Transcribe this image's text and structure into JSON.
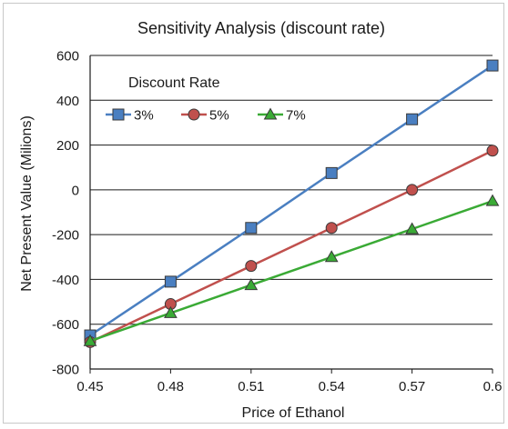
{
  "chart_data": {
    "type": "line",
    "title": "Sensitivity Analysis (discount rate)",
    "xlabel": "Price of Ethanol",
    "ylabel": "Net Present Value (Milions)",
    "x": [
      0.45,
      0.48,
      0.51,
      0.54,
      0.57,
      0.6
    ],
    "x_tick_labels": [
      "0.45",
      "0.48",
      "0.51",
      "0.54",
      "0.57",
      "0.6"
    ],
    "xlim": [
      0.45,
      0.6
    ],
    "ylim": [
      -800,
      600
    ],
    "y_ticks": [
      -800,
      -600,
      -400,
      -200,
      0,
      200,
      400,
      600
    ],
    "grid": "horizontal",
    "legend": {
      "title": "Discount Rate",
      "placement": "top-left"
    },
    "series": [
      {
        "name": "3%",
        "color": "#4a7fc1",
        "marker": "square",
        "values": [
          -650,
          -410,
          -170,
          75,
          315,
          555
        ]
      },
      {
        "name": "5%",
        "color": "#c0504d",
        "marker": "circle",
        "values": [
          -680,
          -510,
          -340,
          -170,
          0,
          175
        ]
      },
      {
        "name": "7%",
        "color": "#3aaa35",
        "marker": "triangle",
        "values": [
          -675,
          -550,
          -425,
          -300,
          -175,
          -50
        ]
      }
    ]
  }
}
